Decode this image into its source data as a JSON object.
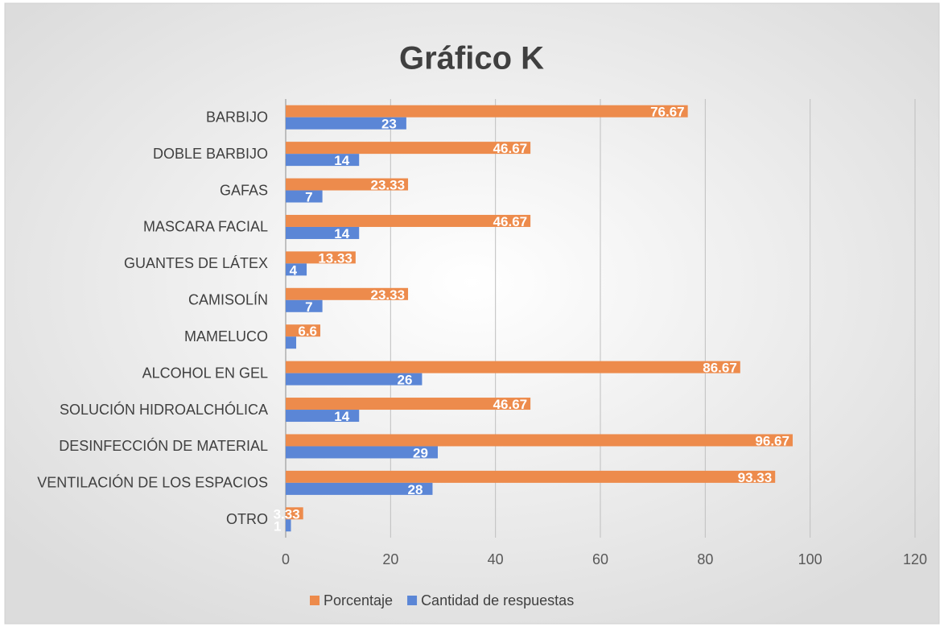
{
  "chart_data": {
    "type": "bar",
    "orientation": "horizontal",
    "title": "Gráfico K",
    "categories": [
      "BARBIJO",
      "DOBLE BARBIJO",
      "GAFAS",
      "MASCARA FACIAL",
      "GUANTES DE LÁTEX",
      "CAMISOLÍN",
      "MAMELUCO",
      "ALCOHOL EN GEL",
      "SOLUCIÓN HIDROALCHÓLICA",
      "DESINFECCIÓN DE MATERIAL",
      "VENTILACIÓN DE LOS ESPACIOS",
      "OTRO"
    ],
    "series": [
      {
        "name": "Porcentaje",
        "color": "#ed8b4c",
        "values": [
          76.67,
          46.67,
          23.33,
          46.67,
          13.33,
          23.33,
          6.6,
          86.67,
          46.67,
          96.67,
          93.33,
          3.33
        ]
      },
      {
        "name": "Cantidad de respuestas",
        "color": "#5b86d6",
        "values": [
          23,
          14,
          7,
          14,
          4,
          7,
          2,
          26,
          14,
          29,
          28,
          1
        ],
        "value_labels": [
          "23",
          "14",
          "7",
          "14",
          "4",
          "7",
          null,
          "26",
          "14",
          "29",
          "28",
          "1"
        ]
      }
    ],
    "xlim": [
      0,
      120
    ],
    "xticks": [
      0,
      20,
      40,
      60,
      80,
      100,
      120
    ],
    "grid": true,
    "legend": "bottom"
  }
}
